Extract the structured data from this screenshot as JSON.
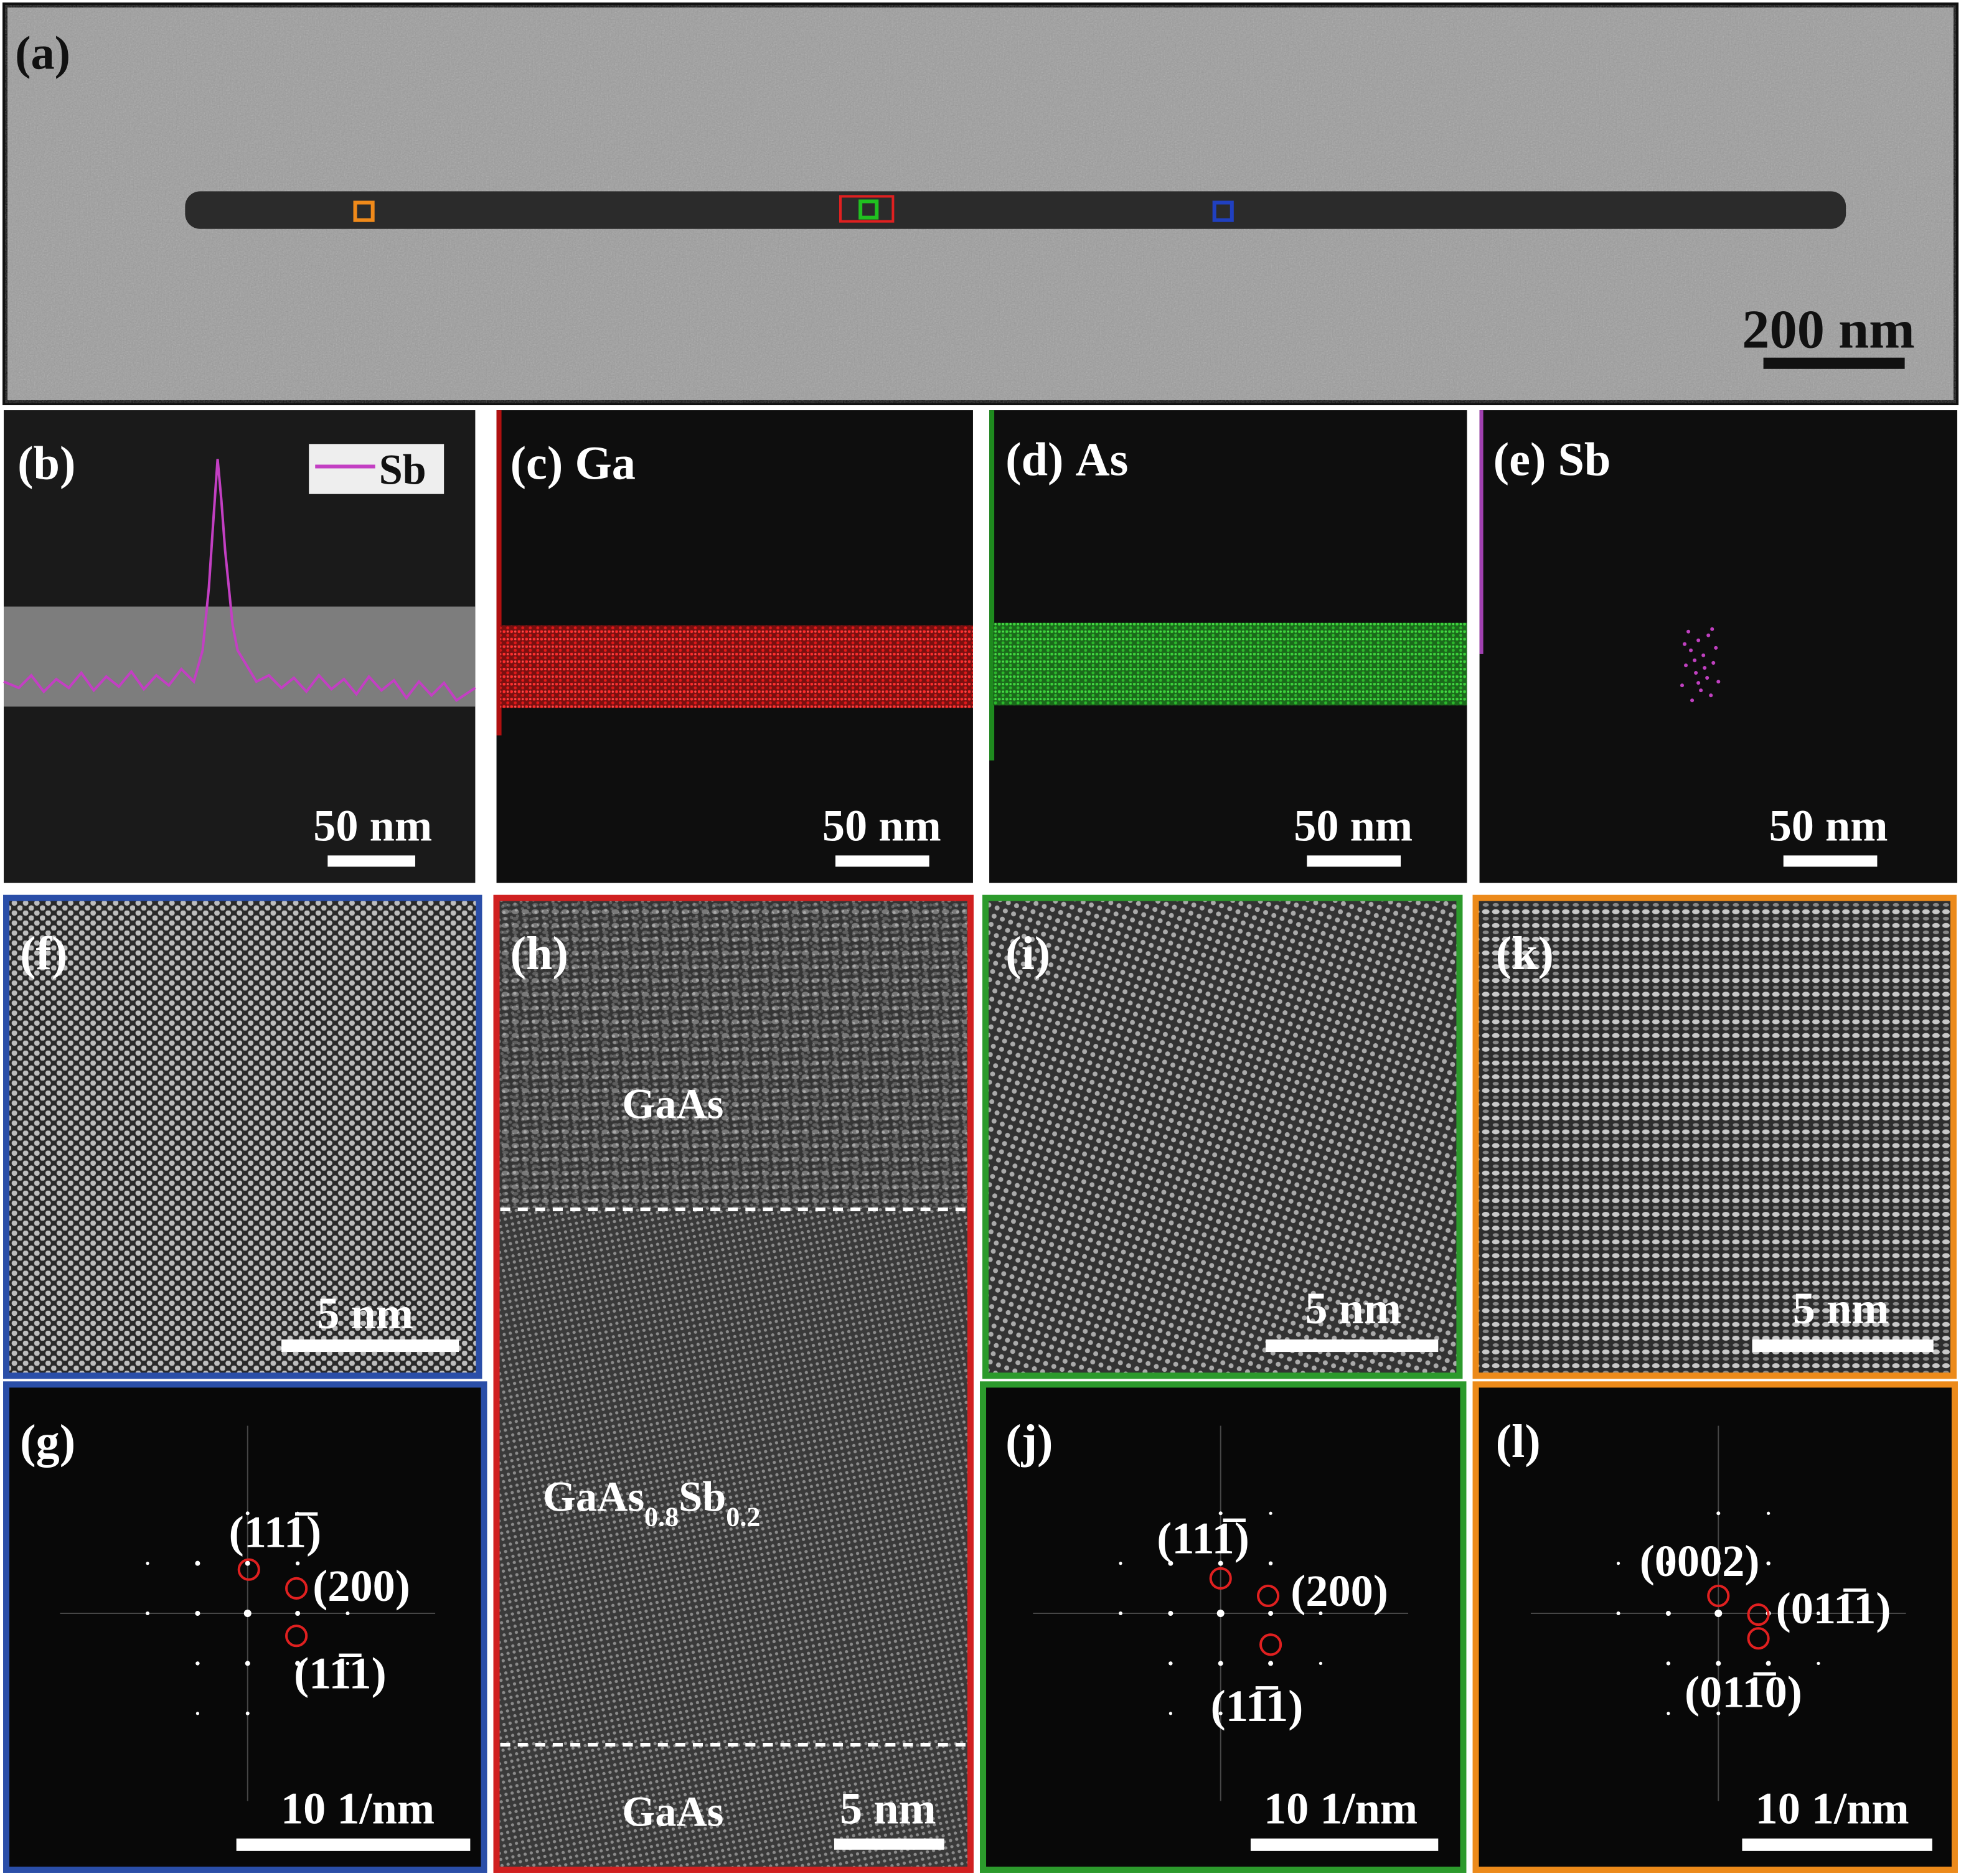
{
  "panels": {
    "a": {
      "label": "(a)",
      "scale_bar": "200 nm"
    },
    "b": {
      "label": "(b)",
      "legend": "Sb",
      "scale_bar": "50 nm"
    },
    "c": {
      "label": "(c)",
      "element": "Ga",
      "scale_bar": "50 nm"
    },
    "d": {
      "label": "(d)",
      "element": "As",
      "scale_bar": "50 nm"
    },
    "e": {
      "label": "(e)",
      "element": "Sb",
      "scale_bar": "50 nm"
    },
    "f": {
      "label": "(f)",
      "scale_bar": "5 nm"
    },
    "g": {
      "label": "(g)",
      "spots": [
        "(111̅)",
        "(200)",
        "(11̅1)"
      ],
      "scale_bar": "10 1/nm"
    },
    "h": {
      "label": "(h)",
      "regions": {
        "top": "GaAs",
        "middle": [
          "GaAs",
          "0.8",
          "Sb",
          "0.2"
        ],
        "bottom": "GaAs"
      },
      "scale_bar": "5 nm"
    },
    "i": {
      "label": "(i)",
      "scale_bar": "5 nm"
    },
    "j": {
      "label": "(j)",
      "spots": [
        "(111̅)",
        "(200)",
        "(11̅1)"
      ],
      "scale_bar": "10 1/nm"
    },
    "k": {
      "label": "(k)",
      "scale_bar": "5 nm"
    },
    "l": {
      "label": "(l)",
      "spots": [
        "(0002)",
        "(011̅1)",
        "(011̅0)"
      ],
      "scale_bar": "10 1/nm"
    }
  }
}
